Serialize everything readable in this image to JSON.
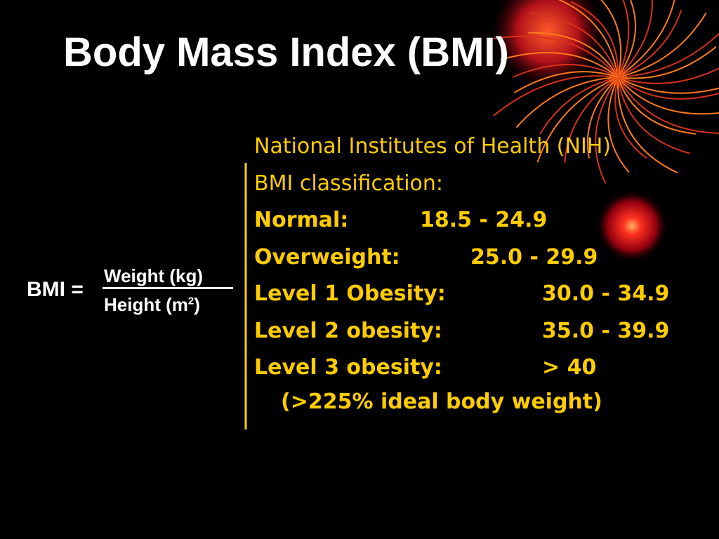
{
  "title": "Body Mass Index (BMI)",
  "formula": {
    "lhs": "BMI =",
    "numerator": "Weight (kg)",
    "denominator": {
      "text": "Height (m",
      "superscript": "2",
      "close": ")"
    }
  },
  "classification": {
    "intro": [
      "National Institutes of Health (NIH)",
      "BMI classification:"
    ],
    "rows": [
      {
        "label": "Normal:",
        "range": "18.5 - 24.9"
      },
      {
        "label": "Overweight:",
        "range": "25.0 - 29.9"
      },
      {
        "label": "Level 1 Obesity:",
        "range": "30.0 - 34.9"
      },
      {
        "label": "Level 2 obesity:",
        "range": "35.0 - 39.9"
      },
      {
        "label": "Level 3 obesity:",
        "range": "> 40"
      }
    ],
    "note": "(>225% ideal body weight)"
  }
}
